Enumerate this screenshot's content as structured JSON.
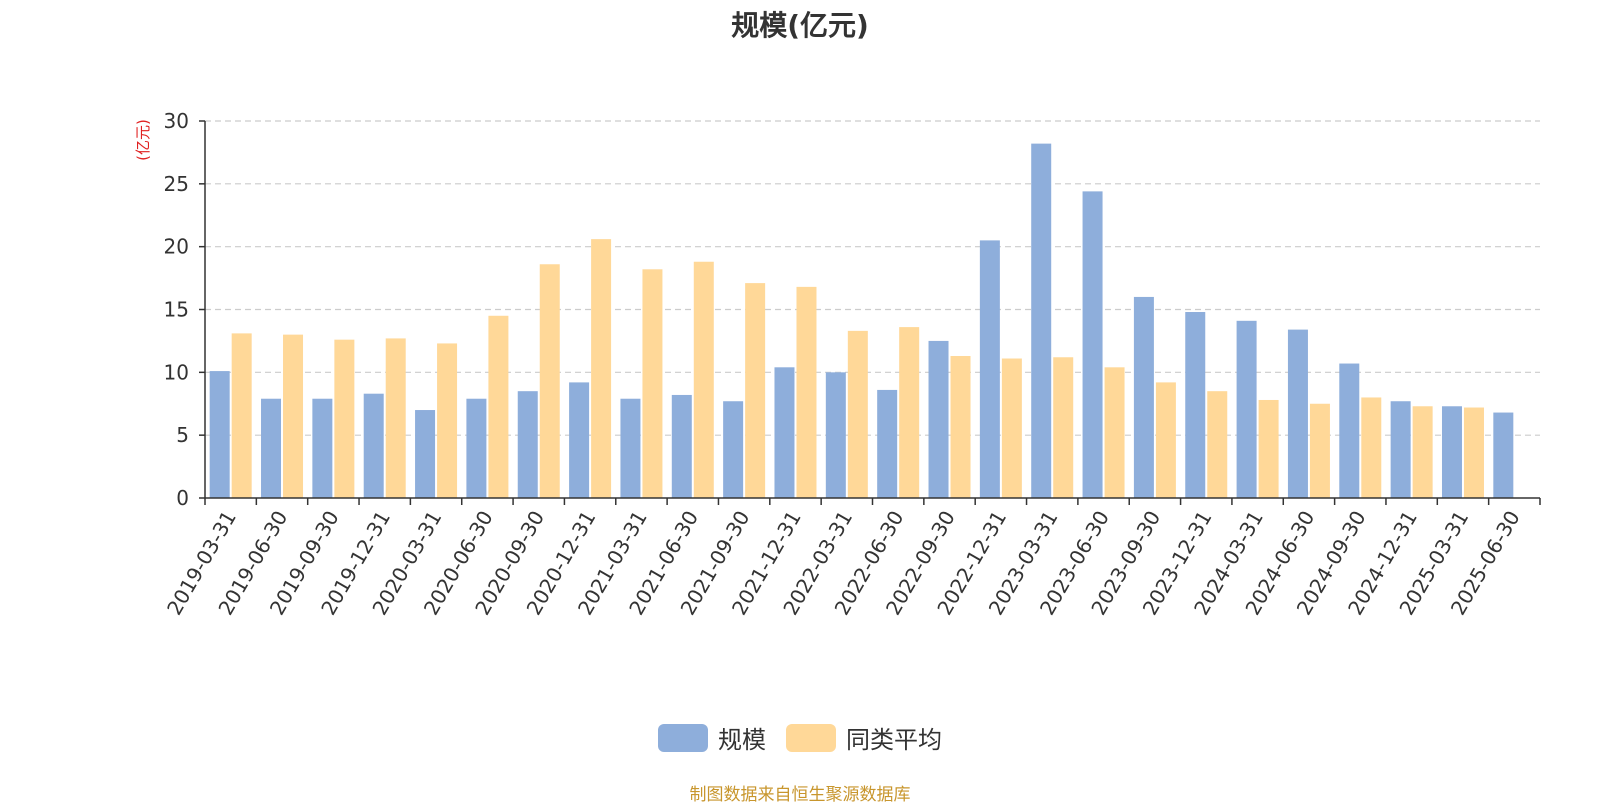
{
  "chart_data": {
    "type": "bar",
    "title": "规模(亿元)",
    "ylabel": "(亿元)",
    "ylim": [
      0,
      30
    ],
    "yticks": [
      0,
      5,
      10,
      15,
      20,
      25,
      30
    ],
    "grid": true,
    "legend_position": "bottom",
    "categories": [
      "2019-03-31",
      "2019-06-30",
      "2019-09-30",
      "2019-12-31",
      "2020-03-31",
      "2020-06-30",
      "2020-09-30",
      "2020-12-31",
      "2021-03-31",
      "2021-06-30",
      "2021-09-30",
      "2021-12-31",
      "2022-03-31",
      "2022-06-30",
      "2022-09-30",
      "2022-12-31",
      "2023-03-31",
      "2023-06-30",
      "2023-09-30",
      "2023-12-31",
      "2024-03-31",
      "2024-06-30",
      "2024-09-30",
      "2024-12-31",
      "2025-03-31",
      "2025-06-30"
    ],
    "series": [
      {
        "name": "规模",
        "color": "#8eaedb",
        "values": [
          10.1,
          7.9,
          7.9,
          8.3,
          7.0,
          7.9,
          8.5,
          9.2,
          7.9,
          8.2,
          7.7,
          10.4,
          10.0,
          8.6,
          12.5,
          20.5,
          28.2,
          24.4,
          16.0,
          14.8,
          14.1,
          13.4,
          10.7,
          7.7,
          7.3,
          6.8
        ]
      },
      {
        "name": "同类平均",
        "color": "#ffd898",
        "values": [
          13.1,
          13.0,
          12.6,
          12.7,
          12.3,
          14.5,
          18.6,
          20.6,
          18.2,
          18.8,
          17.1,
          16.8,
          13.3,
          13.6,
          11.3,
          11.1,
          11.2,
          10.4,
          9.2,
          8.5,
          7.8,
          7.5,
          8.0,
          7.3,
          7.2,
          null
        ]
      }
    ]
  },
  "source_note": "制图数据来自恒生聚源数据库",
  "colors": {
    "axis": "#333333",
    "grid": "#cccccc",
    "ylabel": "#e02020",
    "source": "#c8962d"
  }
}
